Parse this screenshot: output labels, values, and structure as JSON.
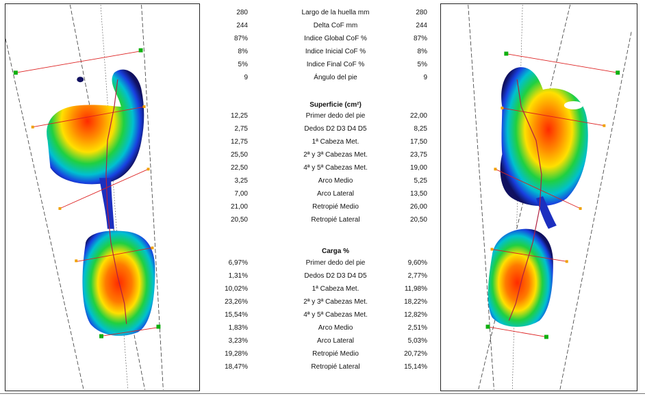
{
  "summary": [
    {
      "label": "Largo de la huella mm",
      "left": "280",
      "right": "280"
    },
    {
      "label": "Delta CoF mm",
      "left": "244",
      "right": "244"
    },
    {
      "label": "Indice Global CoF %",
      "left": "87%",
      "right": "87%"
    },
    {
      "label": "Indice Inicial CoF %",
      "left": "8%",
      "right": "8%"
    },
    {
      "label": "Indice Final CoF %",
      "left": "5%",
      "right": "5%"
    },
    {
      "label": "Ángulo del pie",
      "left": "9",
      "right": "9"
    }
  ],
  "superficie": {
    "heading": "Superficie (cm²)",
    "rows": [
      {
        "label": "Primer dedo del pie",
        "left": "12,25",
        "right": "22,00"
      },
      {
        "label": "Dedos D2 D3 D4 D5",
        "left": "2,75",
        "right": "8,25"
      },
      {
        "label": "1ª Cabeza Met.",
        "left": "12,75",
        "right": "17,50"
      },
      {
        "label": "2ª y 3ª Cabezas Met.",
        "left": "25,50",
        "right": "23,75"
      },
      {
        "label": "4ª y 5ª Cabezas Met.",
        "left": "22,50",
        "right": "19,00"
      },
      {
        "label": "Arco Medio",
        "left": "3,25",
        "right": "5,25"
      },
      {
        "label": "Arco Lateral",
        "left": "7,00",
        "right": "13,50"
      },
      {
        "label": "Retropié Medio",
        "left": "21,00",
        "right": "26,00"
      },
      {
        "label": "Retropié Lateral",
        "left": "20,50",
        "right": "20,50"
      }
    ]
  },
  "carga": {
    "heading": "Carga %",
    "rows": [
      {
        "label": "Primer dedo del pie",
        "left": "6,97%",
        "right": "9,60%"
      },
      {
        "label": "Dedos D2 D3 D4 D5",
        "left": "1,31%",
        "right": "2,77%"
      },
      {
        "label": "1ª Cabeza Met.",
        "left": "10,02%",
        "right": "11,98%"
      },
      {
        "label": "2ª y 3ª Cabezas Met.",
        "left": "23,26%",
        "right": "18,22%"
      },
      {
        "label": "4ª y 5ª Cabezas Met.",
        "left": "15,54%",
        "right": "12,82%"
      },
      {
        "label": "Arco Medio",
        "left": "1,83%",
        "right": "2,51%"
      },
      {
        "label": "Arco Lateral",
        "left": "3,23%",
        "right": "5,03%"
      },
      {
        "label": "Retropié Medio",
        "left": "19,28%",
        "right": "20,72%"
      },
      {
        "label": "Retropié Lateral",
        "left": "18,47%",
        "right": "15,14%"
      }
    ]
  },
  "colors": {
    "heat_low": "#10105a",
    "heat_mid": "#20c040",
    "heat_high": "#ff3010",
    "axis_line": "#dd2020",
    "marker_green": "#10b010",
    "marker_orange": "#f0a000"
  }
}
